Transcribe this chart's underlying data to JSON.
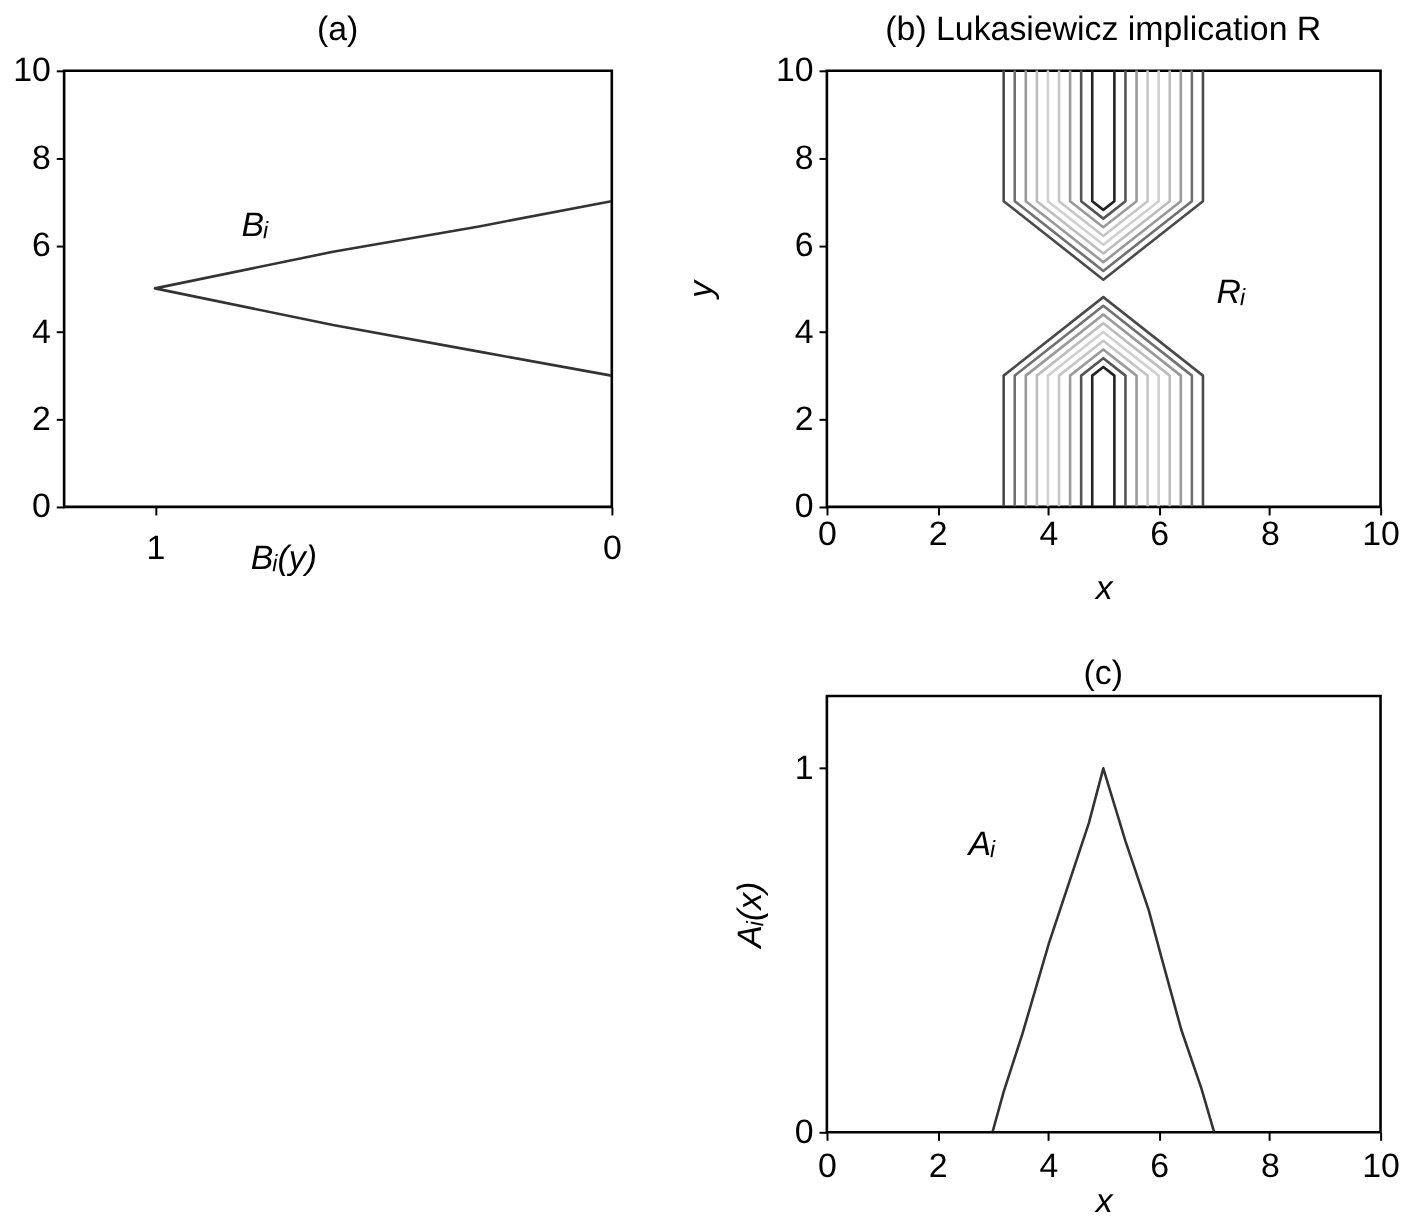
{
  "chart_data": [
    {
      "type": "line",
      "title": "(a)",
      "xlabel": "Bᵢ(y)",
      "xlim": [
        1.2,
        0
      ],
      "xticks": [
        1,
        0
      ],
      "ylim": [
        0,
        10
      ],
      "yticks": [
        0,
        2,
        4,
        6,
        8,
        10
      ],
      "series": [
        {
          "color": "#333333",
          "x": [
            0,
            0.29,
            0.61,
            1,
            0.61,
            0.29,
            0
          ],
          "values": [
            3,
            3.55,
            4.16,
            5,
            5.84,
            6.42,
            7
          ]
        }
      ],
      "annotations": [
        "Bᵢ"
      ]
    },
    {
      "type": "line",
      "title": "(b) Lukasiewicz implication R",
      "xlabel": "x",
      "ylabel": "y",
      "xlim": [
        0,
        10
      ],
      "xticks": [
        0,
        2,
        4,
        6,
        8,
        10
      ],
      "ylim": [
        0,
        10
      ],
      "yticks": [
        0,
        2,
        4,
        6,
        8,
        10
      ],
      "series": [
        {
          "color": "#4a4a4a",
          "x": [
            3.2,
            3.2,
            5,
            6.8,
            6.8
          ],
          "values": [
            10,
            7,
            5.2,
            7,
            10
          ]
        },
        {
          "color": "#707070",
          "x": [
            3.4,
            3.4,
            5,
            6.6,
            6.6
          ],
          "values": [
            10,
            7,
            5.4,
            7,
            10
          ]
        },
        {
          "color": "#999999",
          "x": [
            3.6,
            3.6,
            5,
            6.4,
            6.4
          ],
          "values": [
            10,
            7,
            5.6,
            7,
            10
          ]
        },
        {
          "color": "#bdbdbd",
          "x": [
            3.8,
            3.8,
            5,
            6.2,
            6.2
          ],
          "values": [
            10,
            7,
            5.8,
            7,
            10
          ]
        },
        {
          "color": "#d0d0d0",
          "x": [
            4,
            4,
            5,
            6,
            6
          ],
          "values": [
            10,
            7,
            6,
            7,
            10
          ]
        },
        {
          "color": "#c6c6c6",
          "x": [
            4.2,
            4.2,
            5,
            5.8,
            5.8
          ],
          "values": [
            10,
            7,
            6.2,
            7,
            10
          ]
        },
        {
          "color": "#9a9a9a",
          "x": [
            4.4,
            4.4,
            5,
            5.6,
            5.6
          ],
          "values": [
            10,
            7,
            6.4,
            7,
            10
          ]
        },
        {
          "color": "#555555",
          "x": [
            4.6,
            4.6,
            5,
            5.4,
            5.4
          ],
          "values": [
            10,
            7,
            6.6,
            7,
            10
          ]
        },
        {
          "color": "#222222",
          "x": [
            4.8,
            4.8,
            5,
            5.2,
            5.2
          ],
          "values": [
            10,
            7,
            6.8,
            7,
            10
          ]
        },
        {
          "color": "#4a4a4a",
          "x": [
            3.2,
            3.2,
            5,
            6.8,
            6.8
          ],
          "values": [
            0,
            3,
            4.8,
            3,
            0
          ]
        },
        {
          "color": "#707070",
          "x": [
            3.4,
            3.4,
            5,
            6.6,
            6.6
          ],
          "values": [
            0,
            3,
            4.6,
            3,
            0
          ]
        },
        {
          "color": "#999999",
          "x": [
            3.6,
            3.6,
            5,
            6.4,
            6.4
          ],
          "values": [
            0,
            3,
            4.4,
            3,
            0
          ]
        },
        {
          "color": "#bdbdbd",
          "x": [
            3.8,
            3.8,
            5,
            6.2,
            6.2
          ],
          "values": [
            0,
            3,
            4.2,
            3,
            0
          ]
        },
        {
          "color": "#d0d0d0",
          "x": [
            4,
            4,
            5,
            6,
            6
          ],
          "values": [
            0,
            3,
            4,
            3,
            0
          ]
        },
        {
          "color": "#c6c6c6",
          "x": [
            4.2,
            4.2,
            5,
            5.8,
            5.8
          ],
          "values": [
            0,
            3,
            3.8,
            3,
            0
          ]
        },
        {
          "color": "#9a9a9a",
          "x": [
            4.4,
            4.4,
            5,
            5.6,
            5.6
          ],
          "values": [
            0,
            3,
            3.6,
            3,
            0
          ]
        },
        {
          "color": "#555555",
          "x": [
            4.6,
            4.6,
            5,
            5.4,
            5.4
          ],
          "values": [
            0,
            3,
            3.4,
            3,
            0
          ]
        },
        {
          "color": "#222222",
          "x": [
            4.8,
            4.8,
            5,
            5.2,
            5.2
          ],
          "values": [
            0,
            3,
            3.2,
            3,
            0
          ]
        }
      ],
      "annotations": [
        "Rᵢ"
      ]
    },
    {
      "type": "line",
      "title": "(c)",
      "xlabel": "x",
      "ylabel": "Aᵢ(x)",
      "xlim": [
        0,
        10
      ],
      "xticks": [
        0,
        2,
        4,
        6,
        8,
        10
      ],
      "ylim": [
        0,
        1.2
      ],
      "yticks": [
        0,
        1
      ],
      "series": [
        {
          "color": "#333333",
          "x": [
            3,
            3.2,
            3.54,
            4.02,
            4.5,
            4.74,
            5,
            5.22,
            5.4,
            5.82,
            6.05,
            6.41,
            6.77,
            7
          ],
          "values": [
            0,
            0.11,
            0.27,
            0.52,
            0.74,
            0.85,
            1,
            0.89,
            0.8,
            0.61,
            0.48,
            0.28,
            0.12,
            0
          ]
        }
      ],
      "annotations": [
        "Aᵢ"
      ]
    }
  ]
}
